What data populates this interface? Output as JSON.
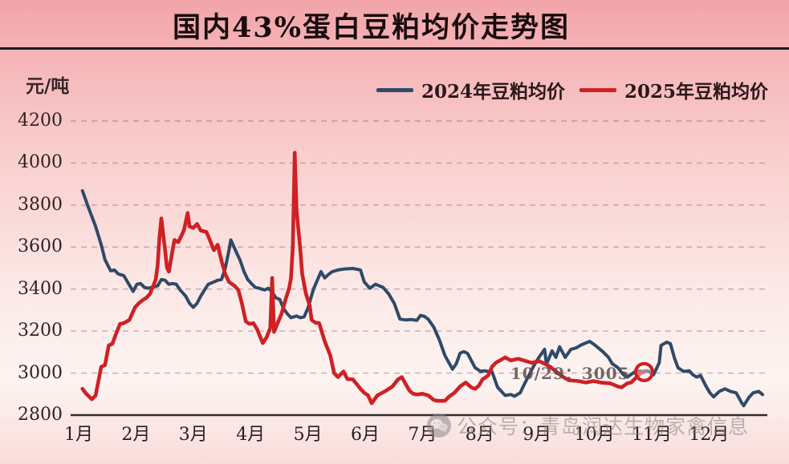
{
  "title": "国内43%蛋白豆粕均价走势图",
  "y_unit": "元/吨",
  "annotation": {
    "label": "10/29：3005",
    "day": 302,
    "value": 3005
  },
  "watermark": {
    "icon": "wechat-icon",
    "text": "公众号：青岛润达生物家禽信息"
  },
  "colors": {
    "series_2024": "#2f4a68",
    "series_2025": "#ce2124",
    "grid": "rgba(150,100,105,0.5)",
    "axis_line": "#2d2d2d",
    "title_text": "#170a0c",
    "background_top": "#f2a4a9",
    "background_bottom": "#fdf4f2"
  },
  "chart_data": {
    "type": "line",
    "title": "国内43%蛋白豆粕均价走势图",
    "ylabel": "元/吨",
    "ylim": [
      2800,
      4200
    ],
    "y_ticks": [
      2800,
      3000,
      3200,
      3400,
      3600,
      3800,
      4000,
      4200
    ],
    "x_ticks": [
      "1月",
      "2月",
      "3月",
      "4月",
      "5月",
      "6月",
      "7月",
      "8月",
      "9月",
      "10月",
      "11月",
      "12月"
    ],
    "x_unit": "day-of-year",
    "grid": "dashed-horizontal",
    "legend_position": "top",
    "series": [
      {
        "name": "2024年豆粕均价",
        "color": "#2f4a68",
        "points": [
          [
            3,
            3868
          ],
          [
            6,
            3793
          ],
          [
            10,
            3698
          ],
          [
            13,
            3611
          ],
          [
            15,
            3540
          ],
          [
            18,
            3487
          ],
          [
            20,
            3491
          ],
          [
            22,
            3472
          ],
          [
            25,
            3464
          ],
          [
            27,
            3434
          ],
          [
            30,
            3389
          ],
          [
            32,
            3423
          ],
          [
            34,
            3426
          ],
          [
            36,
            3408
          ],
          [
            38,
            3404
          ],
          [
            40,
            3408
          ],
          [
            43,
            3415
          ],
          [
            45,
            3445
          ],
          [
            47,
            3442
          ],
          [
            49,
            3423
          ],
          [
            51,
            3426
          ],
          [
            53,
            3423
          ],
          [
            55,
            3396
          ],
          [
            58,
            3366
          ],
          [
            60,
            3332
          ],
          [
            62,
            3313
          ],
          [
            64,
            3332
          ],
          [
            66,
            3366
          ],
          [
            68,
            3396
          ],
          [
            70,
            3423
          ],
          [
            73,
            3434
          ],
          [
            75,
            3442
          ],
          [
            77,
            3445
          ],
          [
            79,
            3498
          ],
          [
            81,
            3585
          ],
          [
            82,
            3634
          ],
          [
            85,
            3574
          ],
          [
            87,
            3536
          ],
          [
            89,
            3483
          ],
          [
            91,
            3445
          ],
          [
            93,
            3426
          ],
          [
            95,
            3408
          ],
          [
            97,
            3404
          ],
          [
            100,
            3396
          ],
          [
            102,
            3404
          ],
          [
            104,
            3385
          ],
          [
            106,
            3358
          ],
          [
            108,
            3351
          ],
          [
            110,
            3309
          ],
          [
            112,
            3283
          ],
          [
            114,
            3264
          ],
          [
            117,
            3272
          ],
          [
            119,
            3264
          ],
          [
            121,
            3268
          ],
          [
            123,
            3309
          ],
          [
            126,
            3400
          ],
          [
            130,
            3483
          ],
          [
            132,
            3453
          ],
          [
            134,
            3470
          ],
          [
            136,
            3483
          ],
          [
            139,
            3491
          ],
          [
            142,
            3495
          ],
          [
            147,
            3498
          ],
          [
            151,
            3491
          ],
          [
            153,
            3434
          ],
          [
            156,
            3404
          ],
          [
            159,
            3423
          ],
          [
            163,
            3408
          ],
          [
            166,
            3377
          ],
          [
            169,
            3332
          ],
          [
            172,
            3257
          ],
          [
            175,
            3253
          ],
          [
            178,
            3255
          ],
          [
            181,
            3251
          ],
          [
            183,
            3275
          ],
          [
            185,
            3270
          ],
          [
            187,
            3257
          ],
          [
            190,
            3219
          ],
          [
            193,
            3158
          ],
          [
            196,
            3083
          ],
          [
            200,
            3019
          ],
          [
            202,
            3045
          ],
          [
            204,
            3095
          ],
          [
            206,
            3102
          ],
          [
            208,
            3094
          ],
          [
            212,
            3026
          ],
          [
            215,
            3008
          ],
          [
            217,
            3011
          ],
          [
            219,
            3008
          ],
          [
            221,
            3008
          ],
          [
            224,
            2932
          ],
          [
            228,
            2894
          ],
          [
            231,
            2898
          ],
          [
            233,
            2890
          ],
          [
            236,
            2906
          ],
          [
            238,
            2943
          ],
          [
            243,
            3030
          ],
          [
            246,
            3075
          ],
          [
            249,
            3113
          ],
          [
            250,
            3042
          ],
          [
            253,
            3106
          ],
          [
            255,
            3075
          ],
          [
            257,
            3125
          ],
          [
            260,
            3075
          ],
          [
            263,
            3113
          ],
          [
            266,
            3121
          ],
          [
            268,
            3132
          ],
          [
            270,
            3140
          ],
          [
            273,
            3151
          ],
          [
            276,
            3132
          ],
          [
            280,
            3102
          ],
          [
            283,
            3075
          ],
          [
            285,
            3045
          ],
          [
            288,
            3026
          ],
          [
            291,
            2992
          ],
          [
            293,
            2981
          ],
          [
            296,
            3000
          ],
          [
            298,
            3011
          ],
          [
            301,
            3008
          ],
          [
            304,
            3011
          ],
          [
            307,
            2992
          ],
          [
            310,
            3049
          ],
          [
            311,
            3132
          ],
          [
            314,
            3147
          ],
          [
            316,
            3140
          ],
          [
            318,
            3075
          ],
          [
            320,
            3026
          ],
          [
            323,
            3008
          ],
          [
            326,
            3011
          ],
          [
            328,
            2992
          ],
          [
            330,
            2981
          ],
          [
            332,
            2989
          ],
          [
            335,
            2936
          ],
          [
            337,
            2906
          ],
          [
            339,
            2887
          ],
          [
            342,
            2913
          ],
          [
            345,
            2925
          ],
          [
            348,
            2913
          ],
          [
            351,
            2906
          ],
          [
            354,
            2857
          ],
          [
            355,
            2845
          ],
          [
            358,
            2887
          ],
          [
            360,
            2906
          ],
          [
            363,
            2913
          ],
          [
            365,
            2898
          ]
        ]
      },
      {
        "name": "2025年豆粕均价",
        "color": "#ce2124",
        "end_marker": {
          "day": 302,
          "value": 3005,
          "date": "10/29"
        },
        "points": [
          [
            3,
            2925
          ],
          [
            5,
            2902
          ],
          [
            8,
            2875
          ],
          [
            10,
            2893
          ],
          [
            13,
            3030
          ],
          [
            15,
            3038
          ],
          [
            17,
            3132
          ],
          [
            19,
            3140
          ],
          [
            21,
            3189
          ],
          [
            23,
            3234
          ],
          [
            25,
            3238
          ],
          [
            28,
            3253
          ],
          [
            31,
            3313
          ],
          [
            33,
            3332
          ],
          [
            35,
            3347
          ],
          [
            37,
            3358
          ],
          [
            39,
            3377
          ],
          [
            42,
            3445
          ],
          [
            43,
            3509
          ],
          [
            44,
            3641
          ],
          [
            45,
            3736
          ],
          [
            47,
            3585
          ],
          [
            48,
            3502
          ],
          [
            49,
            3483
          ],
          [
            51,
            3585
          ],
          [
            52,
            3634
          ],
          [
            54,
            3623
          ],
          [
            57,
            3679
          ],
          [
            59,
            3762
          ],
          [
            60,
            3698
          ],
          [
            62,
            3691
          ],
          [
            64,
            3710
          ],
          [
            66,
            3679
          ],
          [
            69,
            3672
          ],
          [
            71,
            3630
          ],
          [
            73,
            3585
          ],
          [
            75,
            3611
          ],
          [
            77,
            3536
          ],
          [
            79,
            3472
          ],
          [
            81,
            3434
          ],
          [
            84,
            3415
          ],
          [
            86,
            3396
          ],
          [
            88,
            3328
          ],
          [
            90,
            3245
          ],
          [
            92,
            3234
          ],
          [
            94,
            3238
          ],
          [
            96,
            3208
          ],
          [
            99,
            3143
          ],
          [
            101,
            3170
          ],
          [
            103,
            3215
          ],
          [
            104,
            3453
          ],
          [
            105,
            3196
          ],
          [
            107,
            3240
          ],
          [
            109,
            3283
          ],
          [
            111,
            3347
          ],
          [
            113,
            3404
          ],
          [
            114,
            3450
          ],
          [
            115,
            3600
          ],
          [
            116,
            4049
          ],
          [
            117,
            3774
          ],
          [
            119,
            3585
          ],
          [
            120,
            3472
          ],
          [
            122,
            3377
          ],
          [
            124,
            3321
          ],
          [
            125,
            3253
          ],
          [
            127,
            3240
          ],
          [
            129,
            3238
          ],
          [
            132,
            3151
          ],
          [
            135,
            3083
          ],
          [
            137,
            3000
          ],
          [
            139,
            2981
          ],
          [
            142,
            3008
          ],
          [
            144,
            2972
          ],
          [
            147,
            2970
          ],
          [
            151,
            2925
          ],
          [
            153,
            2906
          ],
          [
            155,
            2894
          ],
          [
            157,
            2857
          ],
          [
            160,
            2894
          ],
          [
            164,
            2913
          ],
          [
            168,
            2936
          ],
          [
            171,
            2970
          ],
          [
            173,
            2981
          ],
          [
            177,
            2917
          ],
          [
            179,
            2902
          ],
          [
            181,
            2898
          ],
          [
            184,
            2902
          ],
          [
            187,
            2894
          ],
          [
            190,
            2872
          ],
          [
            192,
            2868
          ],
          [
            196,
            2868
          ],
          [
            198,
            2887
          ],
          [
            201,
            2906
          ],
          [
            204,
            2936
          ],
          [
            207,
            2955
          ],
          [
            210,
            2932
          ],
          [
            212,
            2925
          ],
          [
            214,
            2940
          ],
          [
            216,
            2970
          ],
          [
            219,
            2989
          ],
          [
            221,
            3030
          ],
          [
            223,
            3049
          ],
          [
            226,
            3064
          ],
          [
            228,
            3075
          ],
          [
            231,
            3060
          ],
          [
            235,
            3068
          ],
          [
            239,
            3057
          ],
          [
            242,
            3049
          ],
          [
            246,
            3057
          ],
          [
            249,
            3045
          ],
          [
            252,
            3030
          ],
          [
            255,
            3008
          ],
          [
            259,
            2981
          ],
          [
            262,
            2966
          ],
          [
            267,
            2962
          ],
          [
            271,
            2955
          ],
          [
            275,
            2962
          ],
          [
            279,
            2955
          ],
          [
            284,
            2951
          ],
          [
            288,
            2936
          ],
          [
            290,
            2932
          ],
          [
            293,
            2951
          ],
          [
            295,
            2955
          ],
          [
            298,
            2981
          ],
          [
            300,
            3000
          ],
          [
            302,
            3005
          ]
        ]
      }
    ]
  }
}
